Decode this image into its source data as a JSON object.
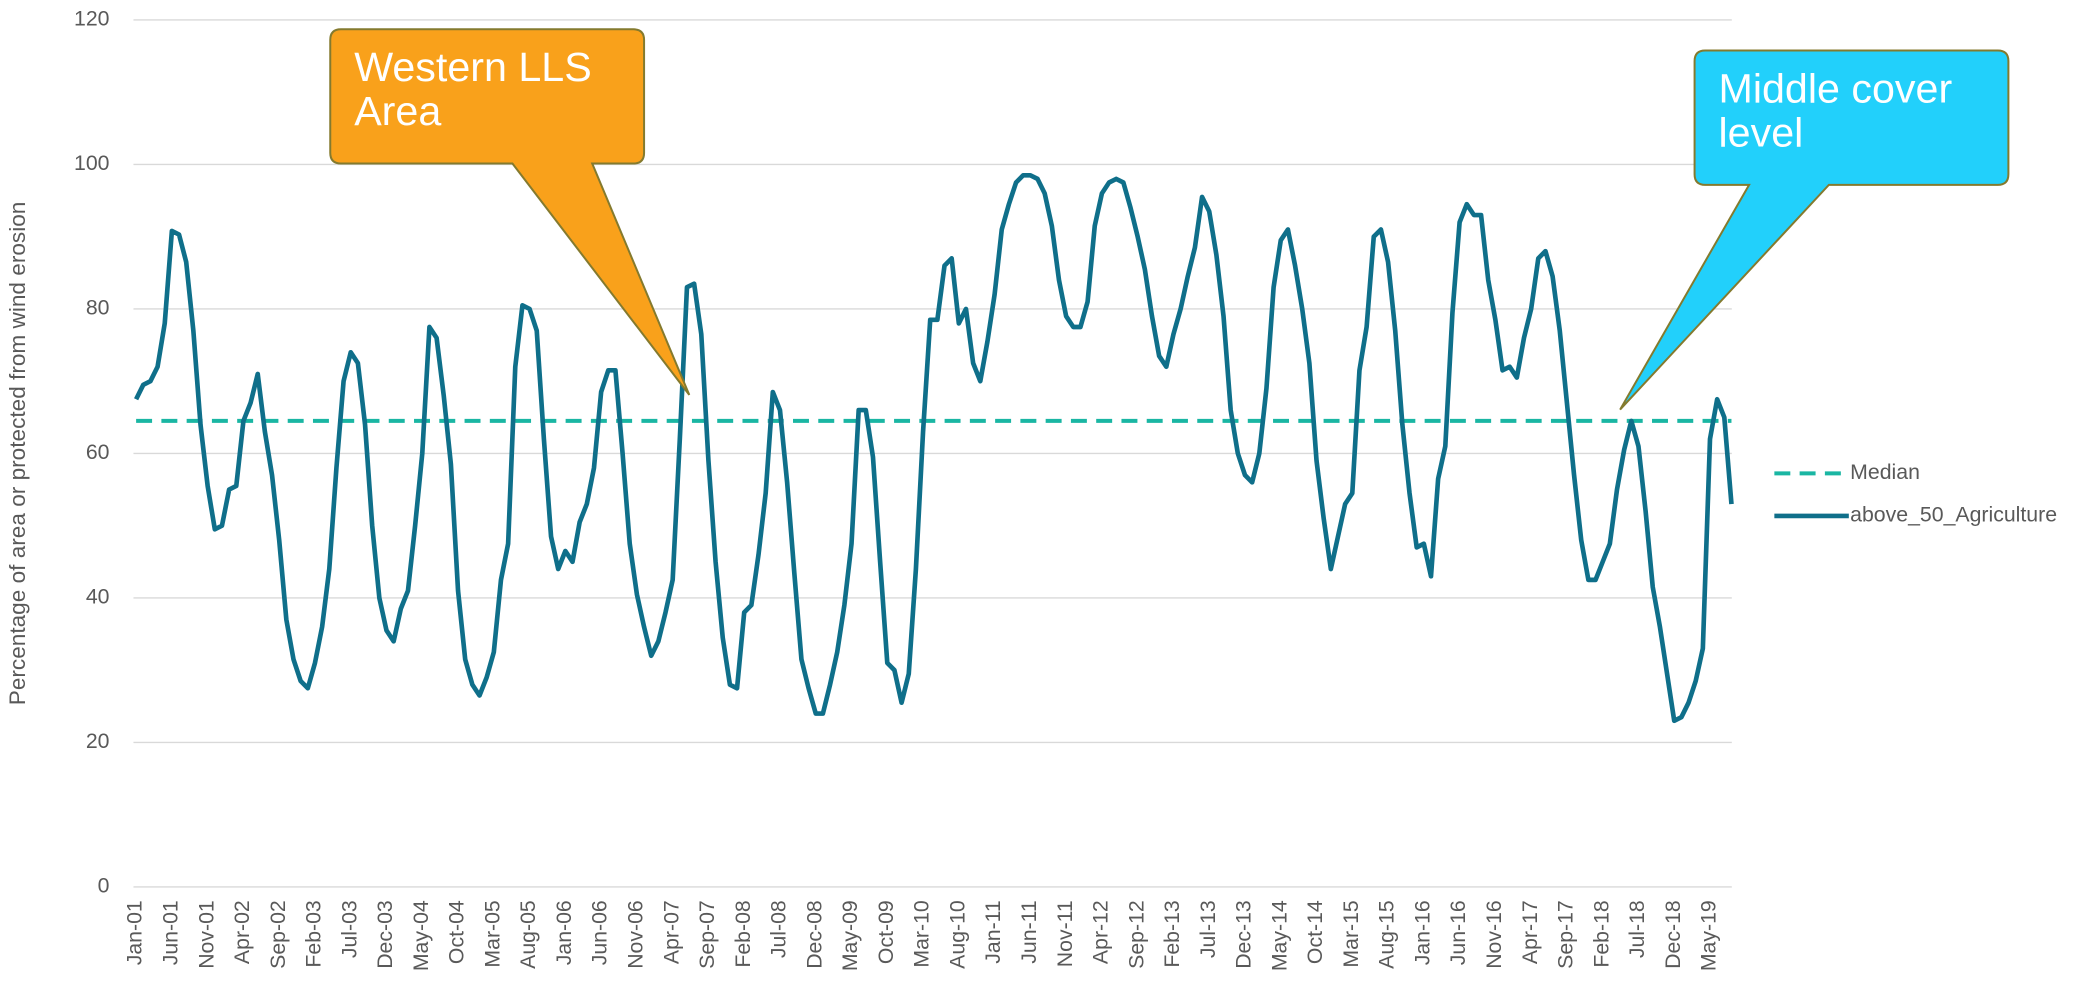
{
  "chart_data": {
    "type": "line",
    "ylabel": "Percentage of area or protected from wind erosion",
    "ylim": [
      0,
      120
    ],
    "yticks": [
      0,
      20,
      40,
      60,
      80,
      100,
      120
    ],
    "grid": true,
    "categories": [
      "Jan-01",
      null,
      null,
      null,
      null,
      "Jun-01",
      null,
      null,
      null,
      null,
      "Nov-01",
      null,
      null,
      null,
      null,
      "Apr-02",
      null,
      null,
      null,
      null,
      "Sep-02",
      null,
      null,
      null,
      null,
      "Feb-03",
      null,
      null,
      null,
      null,
      "Jul-03",
      null,
      null,
      null,
      null,
      "Dec-03",
      null,
      null,
      null,
      null,
      "May-04",
      null,
      null,
      null,
      null,
      "Oct-04",
      null,
      null,
      null,
      null,
      "Mar-05",
      null,
      null,
      null,
      null,
      "Aug-05",
      null,
      null,
      null,
      null,
      "Jan-06",
      null,
      null,
      null,
      null,
      "Jun-06",
      null,
      null,
      null,
      null,
      "Nov-06",
      null,
      null,
      null,
      null,
      "Apr-07",
      null,
      null,
      null,
      null,
      "Sep-07",
      null,
      null,
      null,
      null,
      "Feb-08",
      null,
      null,
      null,
      null,
      "Jul-08",
      null,
      null,
      null,
      null,
      "Dec-08",
      null,
      null,
      null,
      null,
      "May-09",
      null,
      null,
      null,
      null,
      "Oct-09",
      null,
      null,
      null,
      null,
      "Mar-10",
      null,
      null,
      null,
      null,
      "Aug-10",
      null,
      null,
      null,
      null,
      "Jan-11",
      null,
      null,
      null,
      null,
      "Jun-11",
      null,
      null,
      null,
      null,
      "Nov-11",
      null,
      null,
      null,
      null,
      "Apr-12",
      null,
      null,
      null,
      null,
      "Sep-12",
      null,
      null,
      null,
      null,
      "Feb-13",
      null,
      null,
      null,
      null,
      "Jul-13",
      null,
      null,
      null,
      null,
      "Dec-13",
      null,
      null,
      null,
      null,
      "May-14",
      null,
      null,
      null,
      null,
      "Oct-14",
      null,
      null,
      null,
      null,
      "Mar-15",
      null,
      null,
      null,
      null,
      "Aug-15",
      null,
      null,
      null,
      null,
      "Jan-16",
      null,
      null,
      null,
      null,
      "Jun-16",
      null,
      null,
      null,
      null,
      "Nov-16",
      null,
      null,
      null,
      null,
      "Apr-17",
      null,
      null,
      null,
      null,
      "Sep-17",
      null,
      null,
      null,
      null,
      "Feb-18",
      null,
      null,
      null,
      null,
      "Jul-18",
      null,
      null,
      null,
      null,
      "Dec-18",
      null,
      null,
      null,
      null,
      "May-19",
      null,
      null,
      null
    ],
    "series": [
      {
        "name": "above_50_Agriculture",
        "color": "#0f6f8a",
        "values": [
          67.5,
          69.5,
          70,
          72,
          78,
          90.8,
          90.3,
          86.5,
          77,
          64,
          55.5,
          49.5,
          50,
          55,
          55.5,
          64.5,
          67,
          71,
          63,
          57,
          48,
          37,
          31.5,
          28.5,
          27.5,
          31,
          36,
          44,
          58,
          70,
          74,
          72.5,
          64,
          50,
          40,
          35.5,
          34,
          38.5,
          41,
          50,
          60,
          77.5,
          76,
          68,
          58.5,
          41,
          31.5,
          28,
          26.5,
          29,
          32.5,
          42.5,
          47.5,
          72,
          80.5,
          80,
          77,
          62,
          48.5,
          44,
          46.5,
          45,
          50.5,
          53,
          58,
          68.5,
          71.5,
          71.5,
          60,
          47.5,
          40.5,
          36,
          32,
          34,
          38,
          42.5,
          62,
          83,
          83.5,
          76.5,
          59,
          45,
          34.5,
          28,
          27.5,
          38,
          39,
          46,
          54.5,
          68.5,
          66,
          56,
          43.5,
          31.5,
          27.5,
          24,
          24,
          28,
          32.5,
          39,
          47.5,
          66,
          66,
          59.5,
          45,
          31,
          30,
          25.5,
          29.5,
          44,
          63,
          78.5,
          78.5,
          86,
          87,
          78,
          80,
          72.5,
          70,
          75.5,
          82,
          91,
          94.5,
          97.5,
          98.5,
          98.5,
          98,
          96,
          91.5,
          84,
          79,
          77.5,
          77.5,
          81,
          91.5,
          96,
          97.5,
          98,
          97.5,
          94,
          90,
          85.5,
          79,
          73.5,
          72,
          76.5,
          80,
          84.5,
          88.5,
          95.5,
          93.5,
          87.5,
          79,
          66,
          60,
          57,
          56,
          60,
          69,
          83,
          89.5,
          91,
          86,
          80,
          72.5,
          59,
          51,
          44,
          48.5,
          53,
          54.5,
          71.5,
          77.5,
          90,
          91,
          86.5,
          77,
          64,
          54.5,
          47,
          47.5,
          43,
          56.5,
          61,
          79.5,
          92,
          94.5,
          93,
          93,
          84,
          78.5,
          71.5,
          72,
          70.5,
          76,
          80,
          87,
          88,
          84.5,
          77,
          67,
          57,
          48,
          42.5,
          42.5,
          45,
          47.5,
          55,
          60.5,
          64.5,
          61,
          52,
          41.5,
          36,
          29.5,
          23,
          23.5,
          25.5,
          28.5,
          33,
          62,
          67.5,
          65,
          53
        ]
      }
    ],
    "reference_lines": [
      {
        "name": "Median",
        "value": 64.5,
        "color": "#1ab6a3"
      }
    ],
    "annotations": [
      {
        "text": "Western LLS Area",
        "color": "#f9a11b"
      },
      {
        "text": "Middle cover level",
        "color": "#22d0fb"
      }
    ]
  }
}
